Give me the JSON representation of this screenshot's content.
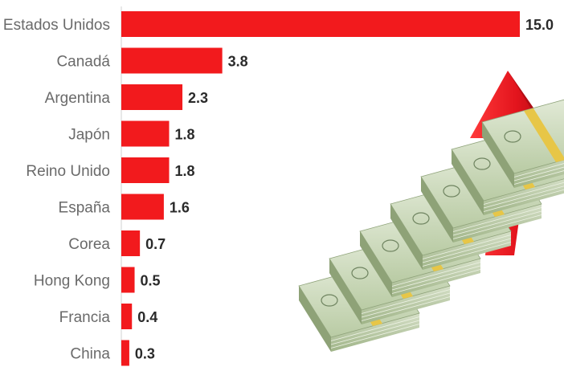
{
  "chart_data": {
    "type": "bar",
    "orientation": "horizontal",
    "categories": [
      "Estados Unidos",
      "Canadá",
      "Argentina",
      "Japón",
      "Reino Unido",
      "España",
      "Corea",
      "Hong Kong",
      "Francia",
      "China"
    ],
    "values": [
      15.0,
      3.8,
      2.3,
      1.8,
      1.8,
      1.6,
      0.7,
      0.5,
      0.4,
      0.3
    ],
    "value_labels": [
      "15.0",
      "3.8",
      "2.3",
      "1.8",
      "1.8",
      "1.6",
      "0.7",
      "0.5",
      "0.4",
      "0.3"
    ],
    "xlim": [
      0,
      15
    ],
    "grid": false,
    "bar_color": "#f21a1d",
    "title": "",
    "xlabel": "",
    "ylabel": ""
  },
  "illustration": {
    "icons": [
      "money-stairs-icon",
      "up-arrow-icon"
    ],
    "arrow_color": "#e3141d",
    "money_color": "#b9cba4",
    "band_color": "#e7c647"
  }
}
